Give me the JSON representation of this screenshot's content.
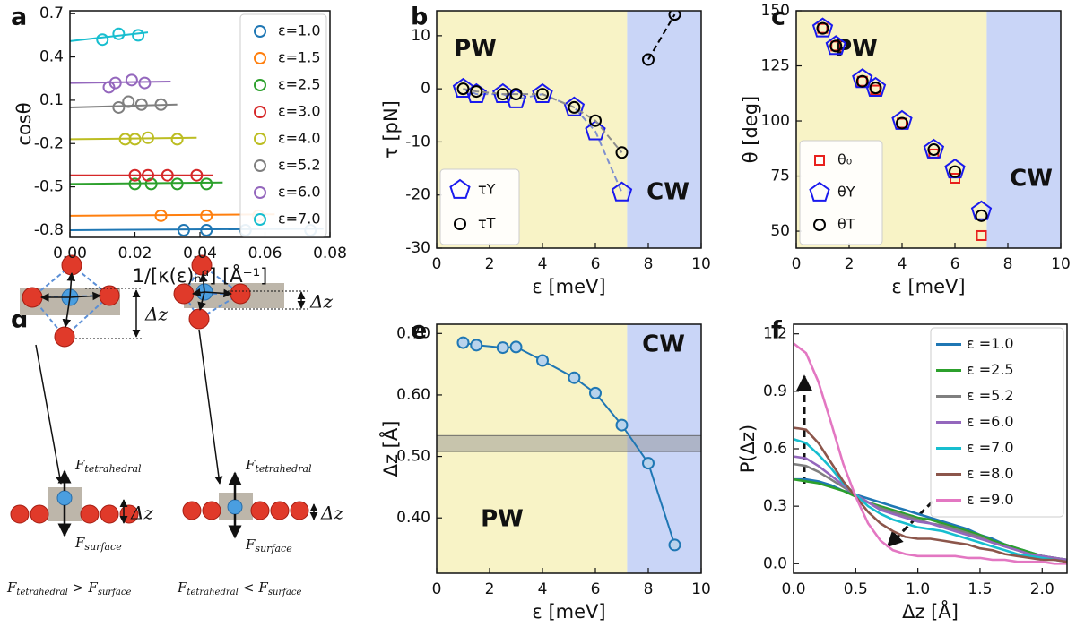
{
  "chart_data": [
    {
      "panel": "a",
      "type": "scatter",
      "xlabel": "1/[κ(ε)ₙᵅ] [Å⁻¹]",
      "ylabel": "cosθ",
      "xlim": [
        0,
        0.08
      ],
      "ylim": [
        -0.85,
        0.72
      ],
      "xticks": [
        {
          "value": 0,
          "label": "0.00"
        },
        {
          "value": 0.02,
          "label": "0.02"
        },
        {
          "value": 0.04,
          "label": "0.04"
        },
        {
          "value": 0.06,
          "label": "0.06"
        },
        {
          "value": 0.08,
          "label": "0.08"
        }
      ],
      "yticks": [
        0.7,
        0.4,
        0.1,
        -0.2,
        -0.5,
        -0.8
      ],
      "legend": "upper right",
      "series": [
        {
          "name": "ε=1.0",
          "color": "#1f77b4",
          "marker": "circle",
          "x": [
            0.035,
            0.042,
            0.054,
            0.074
          ],
          "values": [
            -0.8,
            -0.8,
            -0.8,
            -0.8
          ],
          "fit": {
            "x": [
              0,
              0.078
            ],
            "values": [
              -0.8,
              -0.79
            ]
          }
        },
        {
          "name": "ε=1.5",
          "color": "#ff7f0e",
          "marker": "circle",
          "x": [
            0.028,
            0.042,
            0.058
          ],
          "values": [
            -0.7,
            -0.7,
            -0.7
          ],
          "fit": {
            "x": [
              0,
              0.063
            ],
            "values": [
              -0.7,
              -0.69
            ]
          }
        },
        {
          "name": "ε=2.5",
          "color": "#2ca02c",
          "marker": "circle",
          "x": [
            0.02,
            0.025,
            0.033,
            0.042
          ],
          "values": [
            -0.48,
            -0.48,
            -0.48,
            -0.48
          ],
          "fit": {
            "x": [
              0,
              0.047
            ],
            "values": [
              -0.48,
              -0.47
            ]
          }
        },
        {
          "name": "ε=3.0",
          "color": "#d62728",
          "marker": "circle",
          "x": [
            0.02,
            0.024,
            0.03,
            0.039
          ],
          "values": [
            -0.42,
            -0.42,
            -0.42,
            -0.42
          ],
          "fit": {
            "x": [
              0,
              0.044
            ],
            "values": [
              -0.42,
              -0.42
            ]
          }
        },
        {
          "name": "ε=4.0",
          "color": "#bcbd22",
          "marker": "circle",
          "x": [
            0.017,
            0.02,
            0.024,
            0.033
          ],
          "values": [
            -0.17,
            -0.17,
            -0.16,
            -0.17
          ],
          "fit": {
            "x": [
              0,
              0.039
            ],
            "values": [
              -0.17,
              -0.16
            ]
          }
        },
        {
          "name": "ε=5.2",
          "color": "#7f7f7f",
          "marker": "circle",
          "x": [
            0.015,
            0.018,
            0.022,
            0.028
          ],
          "values": [
            0.05,
            0.09,
            0.07,
            0.07
          ],
          "fit": {
            "x": [
              0,
              0.033
            ],
            "values": [
              0.05,
              0.07
            ]
          }
        },
        {
          "name": "ε=6.0",
          "color": "#9467bd",
          "marker": "circle",
          "x": [
            0.012,
            0.014,
            0.019,
            0.023
          ],
          "values": [
            0.19,
            0.22,
            0.24,
            0.22
          ],
          "fit": {
            "x": [
              0,
              0.031
            ],
            "values": [
              0.22,
              0.23
            ]
          }
        },
        {
          "name": "ε=7.0",
          "color": "#17becf",
          "marker": "circle",
          "x": [
            0.01,
            0.015,
            0.021
          ],
          "values": [
            0.52,
            0.56,
            0.55
          ],
          "fit": {
            "x": [
              0,
              0.024
            ],
            "values": [
              0.51,
              0.57
            ]
          }
        }
      ]
    },
    {
      "panel": "b",
      "type": "scatter",
      "xlabel": "ε [meV]",
      "ylabel": "τ [pN]",
      "xlim": [
        0,
        10
      ],
      "ylim": [
        -30,
        14.7
      ],
      "xticks": [
        0,
        2,
        4,
        6,
        8,
        10
      ],
      "yticks": [
        10,
        0,
        -10,
        -20,
        -30
      ],
      "legend": "lower left",
      "regions": [
        {
          "label": "PW",
          "xlim": [
            0,
            7.2
          ],
          "color": "#f8f3c6"
        },
        {
          "label": "CW",
          "xlim": [
            7.2,
            10
          ],
          "color": "#c9d5f7"
        }
      ],
      "series": [
        {
          "name": "τY",
          "color": "#1a1aee",
          "marker": "pentagon",
          "line": "dashed",
          "line_color": "#7f8fcf",
          "x": [
            1.0,
            1.5,
            2.5,
            3.0,
            4.0,
            5.2,
            6.0,
            7.0
          ],
          "values": [
            0,
            -1,
            -1,
            -2,
            -1,
            -3.5,
            -8,
            -19.5
          ]
        },
        {
          "name": "τT",
          "color": "#000000",
          "marker": "circle",
          "line": "dashed",
          "line_colors": [
            "#8c8c8c",
            "#000000"
          ],
          "x": [
            1.0,
            1.5,
            2.5,
            3.0,
            4.0,
            5.2,
            6.0,
            7.0,
            8.0,
            9.0
          ],
          "values": [
            0,
            -0.5,
            -1,
            -1,
            -1,
            -3.5,
            -6,
            -12,
            5.5,
            14
          ]
        }
      ]
    },
    {
      "panel": "c",
      "type": "scatter",
      "xlabel": "ε [meV]",
      "ylabel": "θ [deg]",
      "xlim": [
        0,
        10
      ],
      "ylim": [
        42.3,
        150
      ],
      "xticks": [
        0,
        2,
        4,
        6,
        8,
        10
      ],
      "yticks": [
        50,
        75,
        100,
        125,
        150
      ],
      "legend": "lower left",
      "regions": [
        {
          "label": "PW",
          "xlim": [
            0,
            7.2
          ],
          "color": "#f8f3c6"
        },
        {
          "label": "CW",
          "xlim": [
            7.2,
            10
          ],
          "color": "#c9d5f7"
        }
      ],
      "series": [
        {
          "name": "θ₀",
          "color": "#e8211d",
          "marker": "square",
          "x": [
            1.0,
            1.5,
            2.5,
            3.0,
            4.0,
            5.2,
            6.0,
            7.0
          ],
          "values": [
            142,
            134,
            118,
            114,
            99,
            85,
            74,
            48
          ]
        },
        {
          "name": "θY",
          "color": "#1a1aee",
          "marker": "pentagon",
          "x": [
            1.0,
            1.5,
            2.5,
            3.0,
            4.0,
            5.2,
            6.0,
            7.0
          ],
          "values": [
            142,
            134,
            119,
            115,
            100,
            87,
            78,
            59
          ]
        },
        {
          "name": "θT",
          "color": "#000000",
          "marker": "circle",
          "x": [
            1.0,
            1.5,
            2.5,
            3.0,
            4.0,
            5.2,
            6.0,
            7.0
          ],
          "values": [
            142,
            134,
            118,
            115,
            99,
            87,
            77,
            57
          ]
        }
      ]
    },
    {
      "panel": "e",
      "type": "line",
      "xlabel": "ε [meV]",
      "ylabel": "Δz [Å]",
      "xlim": [
        0,
        10
      ],
      "ylim": [
        0.31,
        0.715
      ],
      "xticks": [
        0,
        2,
        4,
        6,
        8,
        10
      ],
      "yticks": [
        {
          "value": 0.4,
          "label": "0.40"
        },
        {
          "value": 0.5,
          "label": "0.50"
        },
        {
          "value": 0.6,
          "label": "0.60"
        },
        {
          "value": 0.7,
          "label": "0.70"
        }
      ],
      "regions": [
        {
          "label": "PW",
          "xlim": [
            0,
            7.2
          ],
          "color": "#f8f3c6"
        },
        {
          "label": "CW",
          "xlim": [
            7.2,
            10
          ],
          "color": "#c9d5f7"
        }
      ],
      "band": {
        "ylim": [
          0.508,
          0.534
        ],
        "color": "#8c8c8c"
      },
      "series": [
        {
          "color": "#1f77b4",
          "marker": "circle",
          "marker_fill": "#b9d3ec",
          "line": "solid",
          "x": [
            1.0,
            1.5,
            2.5,
            3.0,
            4.0,
            5.2,
            6.0,
            7.0,
            8.0,
            9.0
          ],
          "values": [
            0.685,
            0.681,
            0.677,
            0.678,
            0.656,
            0.628,
            0.603,
            0.551,
            0.489,
            0.356
          ]
        }
      ]
    },
    {
      "panel": "f",
      "type": "line",
      "xlabel": "Δz [Å]",
      "ylabel": "P(Δz)",
      "xlim": [
        0,
        2.2
      ],
      "ylim": [
        -0.05,
        1.25
      ],
      "xticks": [
        {
          "value": 0,
          "label": "0.0"
        },
        0.5,
        {
          "value": 1,
          "label": "1.0"
        },
        1.5,
        {
          "value": 2,
          "label": "2.0"
        }
      ],
      "yticks": [
        {
          "value": 0,
          "label": "0.0"
        },
        0.3,
        0.6,
        0.9,
        1.2
      ],
      "legend": "upper right",
      "x": [
        0,
        0.1,
        0.2,
        0.3,
        0.4,
        0.5,
        0.6,
        0.7,
        0.8,
        0.9,
        1.0,
        1.1,
        1.2,
        1.3,
        1.4,
        1.5,
        1.6,
        1.7,
        1.8,
        1.9,
        2.0,
        2.1,
        2.2
      ],
      "series": [
        {
          "name": "ε =1.0",
          "color": "#1f77b4",
          "line": "solid",
          "values": [
            0.44,
            0.44,
            0.43,
            0.41,
            0.38,
            0.36,
            0.34,
            0.32,
            0.3,
            0.28,
            0.26,
            0.24,
            0.22,
            0.2,
            0.18,
            0.15,
            0.13,
            0.1,
            0.08,
            0.06,
            0.04,
            0.03,
            0.02
          ]
        },
        {
          "name": "ε =2.5",
          "color": "#2ca02c",
          "line": "solid",
          "values": [
            0.44,
            0.43,
            0.42,
            0.4,
            0.38,
            0.35,
            0.32,
            0.3,
            0.28,
            0.26,
            0.24,
            0.23,
            0.21,
            0.19,
            0.17,
            0.15,
            0.12,
            0.1,
            0.08,
            0.06,
            0.04,
            0.03,
            0.02
          ]
        },
        {
          "name": "ε =5.2",
          "color": "#7f7f7f",
          "line": "solid",
          "values": [
            0.52,
            0.51,
            0.48,
            0.44,
            0.4,
            0.36,
            0.32,
            0.29,
            0.27,
            0.25,
            0.23,
            0.21,
            0.2,
            0.18,
            0.16,
            0.14,
            0.11,
            0.09,
            0.07,
            0.05,
            0.04,
            0.03,
            0.02
          ]
        },
        {
          "name": "ε =6.0",
          "color": "#9467bd",
          "line": "solid",
          "values": [
            0.56,
            0.55,
            0.51,
            0.46,
            0.41,
            0.36,
            0.32,
            0.28,
            0.26,
            0.24,
            0.22,
            0.21,
            0.19,
            0.17,
            0.15,
            0.13,
            0.11,
            0.09,
            0.07,
            0.05,
            0.04,
            0.03,
            0.02
          ]
        },
        {
          "name": "ε =7.0",
          "color": "#17becf",
          "line": "solid",
          "values": [
            0.65,
            0.63,
            0.57,
            0.5,
            0.42,
            0.36,
            0.3,
            0.26,
            0.23,
            0.21,
            0.19,
            0.18,
            0.17,
            0.15,
            0.13,
            0.11,
            0.09,
            0.07,
            0.05,
            0.04,
            0.03,
            0.02,
            0.01
          ]
        },
        {
          "name": "ε =8.0",
          "color": "#8c564b",
          "line": "solid",
          "values": [
            0.71,
            0.7,
            0.63,
            0.53,
            0.43,
            0.35,
            0.27,
            0.21,
            0.17,
            0.14,
            0.13,
            0.13,
            0.12,
            0.11,
            0.1,
            0.08,
            0.07,
            0.05,
            0.04,
            0.03,
            0.02,
            0.02,
            0.01
          ]
        },
        {
          "name": "ε =9.0",
          "color": "#e377c2",
          "line": "solid",
          "values": [
            1.15,
            1.1,
            0.95,
            0.74,
            0.52,
            0.35,
            0.21,
            0.12,
            0.07,
            0.05,
            0.04,
            0.04,
            0.04,
            0.04,
            0.03,
            0.03,
            0.02,
            0.02,
            0.01,
            0.01,
            0.01,
            0.0,
            0.0
          ]
        }
      ]
    }
  ],
  "diagram": {
    "panel": "d",
    "left": {
      "dz_top": "Δz",
      "force_up": [
        "F",
        "tetrahedral"
      ],
      "force_down": [
        "F",
        "surface"
      ],
      "dz_bottom": "Δz",
      "relation": [
        "F",
        "tetrahedral",
        ">",
        "F",
        "surface"
      ]
    },
    "right": {
      "dz_top": "Δz",
      "force_up": [
        "F",
        "tetrahedral"
      ],
      "force_down": [
        "F",
        "surface"
      ],
      "dz_bottom": "Δz",
      "relation": [
        "F",
        "tetrahedral",
        "<",
        "F",
        "surface"
      ]
    }
  }
}
